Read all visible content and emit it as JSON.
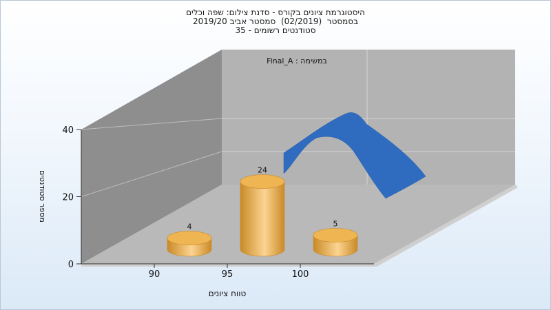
{
  "window": {
    "title_lines": [
      "היסטוגרמת ציונים בקורס - סדנת צילום: שפה וכלים",
      "בסמסטר  (02/2019)  סמסטר אביב 2019/20",
      "סטודנטים רשומים - 35"
    ]
  },
  "colors": {
    "bar_light": "#fcd491",
    "bar_mid": "#f0b553",
    "bar_dark": "#c98a27",
    "curve": "#2f6bbf",
    "floor": "#b9b9b9",
    "back_wall": "#b3b3b3",
    "left_wall": "#8e8e8e"
  },
  "chart_data": {
    "type": "bar",
    "title": "היסטוגרמת ציונים בקורס - סדנת צילום: שפה וכלים",
    "annotation": "במשימה : Final_A",
    "xlabel": "טווח ציונים",
    "ylabel": "מספר סטודנטים",
    "categories": [
      "90",
      "95",
      "100"
    ],
    "series": [
      {
        "values": [
          4,
          24,
          5
        ]
      }
    ],
    "x_ticks": [
      "90",
      "95",
      "100"
    ],
    "y_ticks": [
      0,
      20,
      40
    ],
    "ylim": [
      0,
      40
    ],
    "grid": true,
    "has_distribution_curve": true,
    "style": "3d"
  }
}
